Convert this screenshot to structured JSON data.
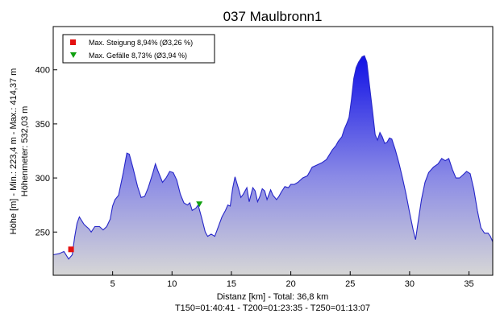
{
  "chart_data": {
    "type": "area",
    "title": "037 Maulbronn1",
    "xlabel": "Distanz [km] - Total: 36,8 km",
    "xlabel2": "T150=01:40:41 - T200=01:23:35 - T250=01:13:07",
    "ylabel": "Höhe [m] - Min.: 223,4 m - Max.: 414,37 m",
    "ylabel2": "Höhenmeter: 532,03 m",
    "xlim": [
      0,
      37
    ],
    "ylim": [
      210,
      440
    ],
    "x_ticks": [
      5,
      10,
      15,
      20,
      25,
      30,
      35
    ],
    "y_ticks": [
      250,
      300,
      350,
      400
    ],
    "grid": false,
    "legend_position": "top-left",
    "colors": {
      "line": "#2626c8",
      "fill_top": "#1010e6",
      "fill_bottom": "#d6d6d6",
      "marker_max": "#e41010",
      "marker_min": "#10a010"
    },
    "markers": [
      {
        "label": "Max. Steigung 8,94% (Ø3,26 %)",
        "shape": "square",
        "x": 1.5,
        "y": 234
      },
      {
        "label": "Max. Gefälle 8,73% (Ø3,94 %)",
        "shape": "triangle-down",
        "x": 12.3,
        "y": 276
      }
    ],
    "series": [
      {
        "values": [
          [
            0.0,
            229
          ],
          [
            0.5,
            230
          ],
          [
            0.9,
            232
          ],
          [
            1.3,
            225
          ],
          [
            1.6,
            229
          ],
          [
            1.8,
            245
          ],
          [
            2.0,
            258
          ],
          [
            2.2,
            264
          ],
          [
            2.6,
            257
          ],
          [
            3.0,
            253
          ],
          [
            3.2,
            250
          ],
          [
            3.5,
            255
          ],
          [
            3.9,
            255
          ],
          [
            4.2,
            252
          ],
          [
            4.5,
            255
          ],
          [
            4.8,
            262
          ],
          [
            5.0,
            274
          ],
          [
            5.2,
            280
          ],
          [
            5.5,
            284
          ],
          [
            5.9,
            305
          ],
          [
            6.2,
            323
          ],
          [
            6.4,
            322
          ],
          [
            6.7,
            310
          ],
          [
            7.1,
            292
          ],
          [
            7.4,
            282
          ],
          [
            7.7,
            283
          ],
          [
            8.0,
            291
          ],
          [
            8.4,
            305
          ],
          [
            8.6,
            313
          ],
          [
            8.8,
            307
          ],
          [
            9.2,
            296
          ],
          [
            9.5,
            300
          ],
          [
            9.8,
            306
          ],
          [
            10.1,
            305
          ],
          [
            10.4,
            298
          ],
          [
            10.7,
            285
          ],
          [
            11.0,
            277
          ],
          [
            11.3,
            275
          ],
          [
            11.5,
            277
          ],
          [
            11.7,
            270
          ],
          [
            12.0,
            272
          ],
          [
            12.2,
            275
          ],
          [
            12.5,
            263
          ],
          [
            12.8,
            250
          ],
          [
            13.0,
            246
          ],
          [
            13.3,
            248
          ],
          [
            13.6,
            246
          ],
          [
            13.8,
            252
          ],
          [
            14.2,
            264
          ],
          [
            14.5,
            270
          ],
          [
            14.7,
            275
          ],
          [
            14.9,
            274
          ],
          [
            15.1,
            290
          ],
          [
            15.3,
            301
          ],
          [
            15.6,
            290
          ],
          [
            15.8,
            282
          ],
          [
            16.0,
            285
          ],
          [
            16.3,
            291
          ],
          [
            16.5,
            278
          ],
          [
            16.8,
            291
          ],
          [
            17.0,
            288
          ],
          [
            17.2,
            278
          ],
          [
            17.4,
            283
          ],
          [
            17.6,
            290
          ],
          [
            17.8,
            288
          ],
          [
            18.0,
            280
          ],
          [
            18.3,
            289
          ],
          [
            18.5,
            284
          ],
          [
            18.8,
            280
          ],
          [
            19.0,
            283
          ],
          [
            19.2,
            287
          ],
          [
            19.5,
            292
          ],
          [
            19.8,
            291
          ],
          [
            20.0,
            294
          ],
          [
            20.3,
            294
          ],
          [
            20.6,
            296
          ],
          [
            21.0,
            300
          ],
          [
            21.4,
            302
          ],
          [
            21.8,
            310
          ],
          [
            22.2,
            312
          ],
          [
            22.6,
            314
          ],
          [
            23.0,
            317
          ],
          [
            23.5,
            326
          ],
          [
            23.8,
            330
          ],
          [
            24.0,
            334
          ],
          [
            24.3,
            338
          ],
          [
            24.5,
            345
          ],
          [
            24.7,
            350
          ],
          [
            24.9,
            356
          ],
          [
            25.1,
            372
          ],
          [
            25.3,
            392
          ],
          [
            25.5,
            402
          ],
          [
            25.7,
            407
          ],
          [
            26.0,
            412
          ],
          [
            26.2,
            413
          ],
          [
            26.4,
            407
          ],
          [
            26.6,
            388
          ],
          [
            26.9,
            360
          ],
          [
            27.1,
            340
          ],
          [
            27.3,
            335
          ],
          [
            27.5,
            342
          ],
          [
            27.7,
            338
          ],
          [
            27.9,
            332
          ],
          [
            28.1,
            333
          ],
          [
            28.3,
            337
          ],
          [
            28.5,
            336
          ],
          [
            28.8,
            326
          ],
          [
            29.1,
            314
          ],
          [
            29.4,
            300
          ],
          [
            29.7,
            285
          ],
          [
            30.0,
            268
          ],
          [
            30.3,
            252
          ],
          [
            30.5,
            243
          ],
          [
            30.7,
            258
          ],
          [
            31.0,
            280
          ],
          [
            31.3,
            296
          ],
          [
            31.6,
            305
          ],
          [
            32.0,
            310
          ],
          [
            32.4,
            313
          ],
          [
            32.7,
            318
          ],
          [
            33.0,
            316
          ],
          [
            33.3,
            318
          ],
          [
            33.6,
            308
          ],
          [
            33.9,
            300
          ],
          [
            34.2,
            300
          ],
          [
            34.5,
            303
          ],
          [
            34.8,
            306
          ],
          [
            35.1,
            304
          ],
          [
            35.4,
            290
          ],
          [
            35.7,
            270
          ],
          [
            36.0,
            254
          ],
          [
            36.3,
            249
          ],
          [
            36.6,
            249
          ],
          [
            36.8,
            246
          ],
          [
            37.0,
            241
          ]
        ]
      }
    ]
  }
}
